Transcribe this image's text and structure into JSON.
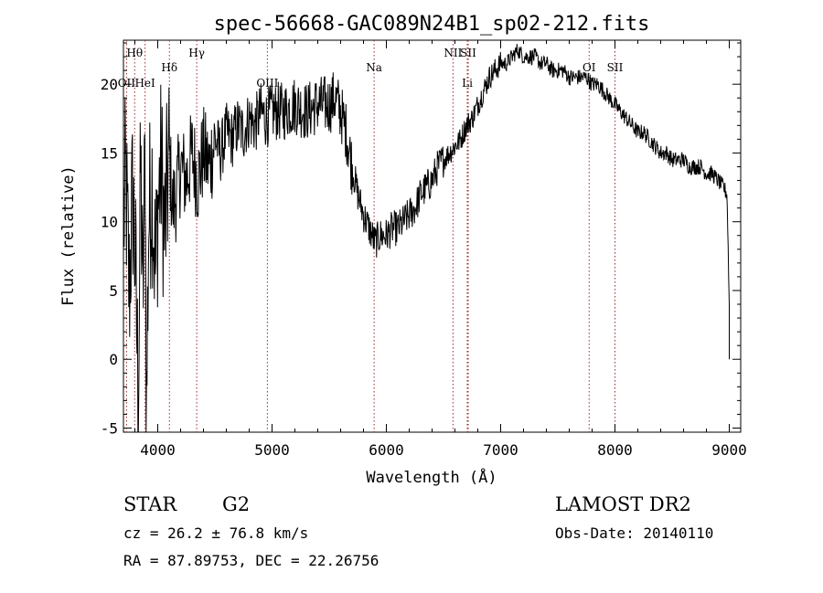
{
  "chart_data": {
    "type": "line",
    "title": "spec-56668-GAC089N24B1_sp02-212.fits",
    "xlabel": "Wavelength (Å)",
    "ylabel": "Flux (relative)",
    "xlim": [
      3700,
      9100
    ],
    "ylim": [
      -5.3,
      23.2
    ],
    "xticks": [
      4000,
      5000,
      6000,
      7000,
      8000,
      9000
    ],
    "yticks": [
      -5,
      0,
      5,
      10,
      15,
      20
    ],
    "grid": false,
    "series": [
      {
        "points": [
          [
            3700,
            10
          ],
          [
            3720,
            13
          ],
          [
            3750,
            5
          ],
          [
            3780,
            12
          ],
          [
            3800,
            8
          ],
          [
            3830,
            -3
          ],
          [
            3850,
            14
          ],
          [
            3870,
            4
          ],
          [
            3890,
            16
          ],
          [
            3900,
            -5
          ],
          [
            3920,
            10
          ],
          [
            3950,
            13
          ],
          [
            3980,
            6
          ],
          [
            4000,
            11
          ],
          [
            4030,
            14
          ],
          [
            4060,
            9
          ],
          [
            4100,
            15
          ],
          [
            4130,
            11
          ],
          [
            4160,
            12
          ],
          [
            4200,
            14
          ],
          [
            4250,
            13
          ],
          [
            4300,
            15
          ],
          [
            4350,
            13
          ],
          [
            4400,
            15
          ],
          [
            4450,
            14
          ],
          [
            4500,
            16
          ],
          [
            4550,
            15
          ],
          [
            4600,
            16.5
          ],
          [
            4650,
            16
          ],
          [
            4700,
            17
          ],
          [
            4750,
            16.5
          ],
          [
            4800,
            17.5
          ],
          [
            4850,
            17
          ],
          [
            4900,
            18
          ],
          [
            4950,
            17.5
          ],
          [
            5000,
            18
          ],
          [
            5100,
            18
          ],
          [
            5200,
            18.5
          ],
          [
            5300,
            18
          ],
          [
            5400,
            18.5
          ],
          [
            5500,
            18.5
          ],
          [
            5550,
            19
          ],
          [
            5600,
            18
          ],
          [
            5650,
            16.5
          ],
          [
            5700,
            14
          ],
          [
            5750,
            12
          ],
          [
            5800,
            10.5
          ],
          [
            5850,
            9.5
          ],
          [
            5900,
            8.5
          ],
          [
            5950,
            9
          ],
          [
            6000,
            9
          ],
          [
            6050,
            9.5
          ],
          [
            6100,
            9.5
          ],
          [
            6150,
            10
          ],
          [
            6200,
            10.5
          ],
          [
            6250,
            11
          ],
          [
            6300,
            12
          ],
          [
            6350,
            12.5
          ],
          [
            6400,
            13
          ],
          [
            6450,
            14
          ],
          [
            6500,
            14.5
          ],
          [
            6550,
            15
          ],
          [
            6600,
            15.5
          ],
          [
            6650,
            16
          ],
          [
            6700,
            17
          ],
          [
            6750,
            17.5
          ],
          [
            6800,
            18.5
          ],
          [
            6850,
            19.5
          ],
          [
            6900,
            20.5
          ],
          [
            6950,
            21
          ],
          [
            7000,
            21.5
          ],
          [
            7050,
            21.5
          ],
          [
            7100,
            22
          ],
          [
            7150,
            22.5
          ],
          [
            7200,
            22
          ],
          [
            7250,
            22
          ],
          [
            7300,
            22
          ],
          [
            7350,
            21.5
          ],
          [
            7400,
            21.5
          ],
          [
            7450,
            21
          ],
          [
            7500,
            21
          ],
          [
            7550,
            21
          ],
          [
            7600,
            20.5
          ],
          [
            7650,
            20.5
          ],
          [
            7700,
            20.5
          ],
          [
            7750,
            20.5
          ],
          [
            7800,
            20
          ],
          [
            7850,
            20
          ],
          [
            7900,
            19.5
          ],
          [
            7950,
            19
          ],
          [
            8000,
            18.5
          ],
          [
            8050,
            18
          ],
          [
            8100,
            17.5
          ],
          [
            8150,
            17
          ],
          [
            8200,
            16.5
          ],
          [
            8250,
            16.5
          ],
          [
            8300,
            16
          ],
          [
            8350,
            15.5
          ],
          [
            8400,
            15
          ],
          [
            8450,
            15
          ],
          [
            8500,
            14.5
          ],
          [
            8550,
            14.5
          ],
          [
            8600,
            14.5
          ],
          [
            8650,
            14
          ],
          [
            8700,
            14
          ],
          [
            8750,
            14
          ],
          [
            8800,
            13.5
          ],
          [
            8850,
            13.5
          ],
          [
            8900,
            13
          ],
          [
            8950,
            12.5
          ],
          [
            8980,
            12
          ],
          [
            9000,
            4
          ],
          [
            9000,
            0
          ]
        ]
      }
    ],
    "lines": [
      {
        "label": "Hθ",
        "x": 3798,
        "row": "upper"
      },
      {
        "label": "OII",
        "x": 3727,
        "row": "lower"
      },
      {
        "label": "HeI",
        "x": 3889,
        "row": "lower"
      },
      {
        "label": "Hδ",
        "x": 4102,
        "row": "middle"
      },
      {
        "label": "Hγ",
        "x": 4341,
        "row": "upper"
      },
      {
        "label": "OIII",
        "x": 4959,
        "row": "lower"
      },
      {
        "label": "Na",
        "x": 5893,
        "row": "middle"
      },
      {
        "label": "NII",
        "x": 6583,
        "row": "upper"
      },
      {
        "label": "SII",
        "x": 6716,
        "row": "upper"
      },
      {
        "label": "Li",
        "x": 6708,
        "row": "lower"
      },
      {
        "label": "OI",
        "x": 7774,
        "row": "middle"
      },
      {
        "label": "SII",
        "x": 8000,
        "row": "middle"
      }
    ]
  },
  "info": {
    "class": "STAR",
    "subclass": "G2",
    "survey": "LAMOST DR2",
    "cz": "cz = 26.2 ± 76.8 km/s",
    "obsdate": "Obs-Date: 20140110",
    "coords": "RA =  87.89753, DEC =  22.26756"
  }
}
